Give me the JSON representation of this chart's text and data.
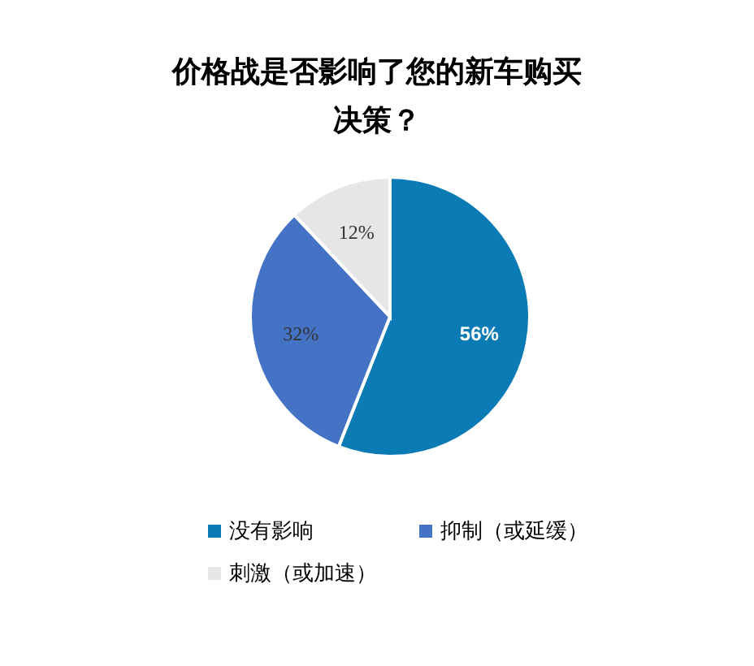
{
  "chart_data": {
    "type": "pie",
    "title": "价格战是否影响了您的新车购买决策？",
    "categories": [
      "没有影响",
      "抑制（或延缓）",
      "刺激（或加速）"
    ],
    "values": [
      56,
      32,
      12
    ],
    "colors": [
      "#0b7bb5",
      "#4472c4",
      "#e6e6e6"
    ],
    "value_labels": [
      "56%",
      "32%",
      "12%"
    ],
    "legend": "bottom"
  }
}
